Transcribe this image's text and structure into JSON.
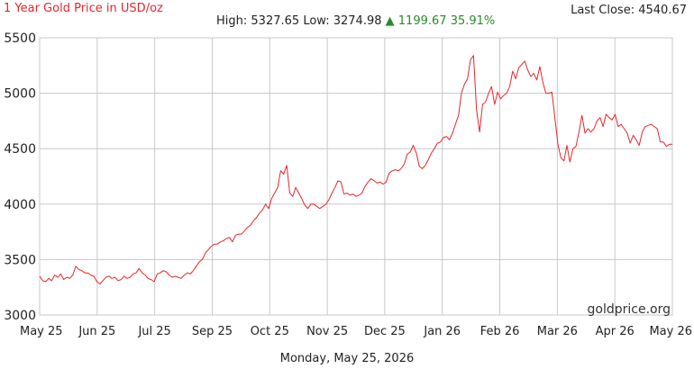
{
  "header": {
    "title": "1 Year Gold Price in USD/oz",
    "last_close_label": "Last Close:",
    "last_close_value": "4540.67",
    "high_label": "High:",
    "high_value": "5327.65",
    "low_label": "Low:",
    "low_value": "3274.98",
    "change_arrow": "▲",
    "change_value": "1199.67",
    "change_percent": "35.91%"
  },
  "watermark": "goldprice.org",
  "footer_date": "Monday, May 25, 2026",
  "colors": {
    "line": "#e8262a",
    "title": "#e8262a",
    "up": "#2a8a2a",
    "grid": "#c8c8c8"
  },
  "chart_data": {
    "type": "line",
    "title": "1 Year Gold Price in USD/oz",
    "xlabel": "",
    "ylabel": "",
    "ylim": [
      3000,
      5500
    ],
    "yticks": [
      "3000",
      "3500",
      "4000",
      "4500",
      "5000",
      "5500"
    ],
    "xticks": [
      "May 25",
      "Jun 25",
      "Jul 25",
      "Sep 25",
      "Oct 25",
      "Nov 25",
      "Dec 25",
      "Jan 26",
      "Feb 26",
      "Mar 26",
      "Apr 26",
      "May 26"
    ],
    "grid": true,
    "legend": "none",
    "series": [
      {
        "values": [
          3350,
          3310,
          3300,
          3330,
          3310,
          3360,
          3340,
          3370,
          3320,
          3340,
          3330,
          3360,
          3440,
          3410,
          3400,
          3380,
          3380,
          3360,
          3350,
          3300,
          3280,
          3310,
          3340,
          3350,
          3330,
          3340,
          3310,
          3320,
          3350,
          3330,
          3340,
          3370,
          3380,
          3420,
          3380,
          3360,
          3330,
          3320,
          3300,
          3370,
          3380,
          3400,
          3390,
          3360,
          3340,
          3350,
          3340,
          3330,
          3360,
          3380,
          3370,
          3400,
          3440,
          3480,
          3500,
          3560,
          3590,
          3620,
          3640,
          3640,
          3660,
          3670,
          3690,
          3700,
          3660,
          3720,
          3730,
          3730,
          3760,
          3790,
          3810,
          3850,
          3880,
          3920,
          3950,
          4000,
          3960,
          4050,
          4100,
          4150,
          4300,
          4270,
          4350,
          4100,
          4070,
          4150,
          4100,
          4050,
          3990,
          3960,
          4000,
          4000,
          3980,
          3960,
          3980,
          4000,
          4040,
          4100,
          4150,
          4210,
          4200,
          4090,
          4100,
          4080,
          4090,
          4070,
          4080,
          4100,
          4160,
          4200,
          4230,
          4210,
          4190,
          4200,
          4180,
          4200,
          4280,
          4300,
          4310,
          4300,
          4320,
          4360,
          4450,
          4470,
          4530,
          4460,
          4340,
          4320,
          4350,
          4400,
          4460,
          4500,
          4550,
          4560,
          4600,
          4610,
          4580,
          4640,
          4720,
          4800,
          5000,
          5080,
          5130,
          5300,
          5340,
          4850,
          4650,
          4900,
          4920,
          5000,
          5060,
          4900,
          5010,
          4950,
          4980,
          5000,
          5060,
          5200,
          5130,
          5230,
          5260,
          5290,
          5210,
          5150,
          5180,
          5120,
          5240,
          5100,
          5000,
          5000,
          5010,
          4780,
          4540,
          4420,
          4390,
          4530,
          4380,
          4500,
          4520,
          4650,
          4800,
          4640,
          4680,
          4650,
          4680,
          4750,
          4780,
          4700,
          4810,
          4780,
          4760,
          4810,
          4700,
          4720,
          4680,
          4640,
          4550,
          4620,
          4580,
          4530,
          4650,
          4700,
          4710,
          4720,
          4700,
          4680,
          4560,
          4560,
          4520,
          4540,
          4540
        ]
      }
    ]
  }
}
